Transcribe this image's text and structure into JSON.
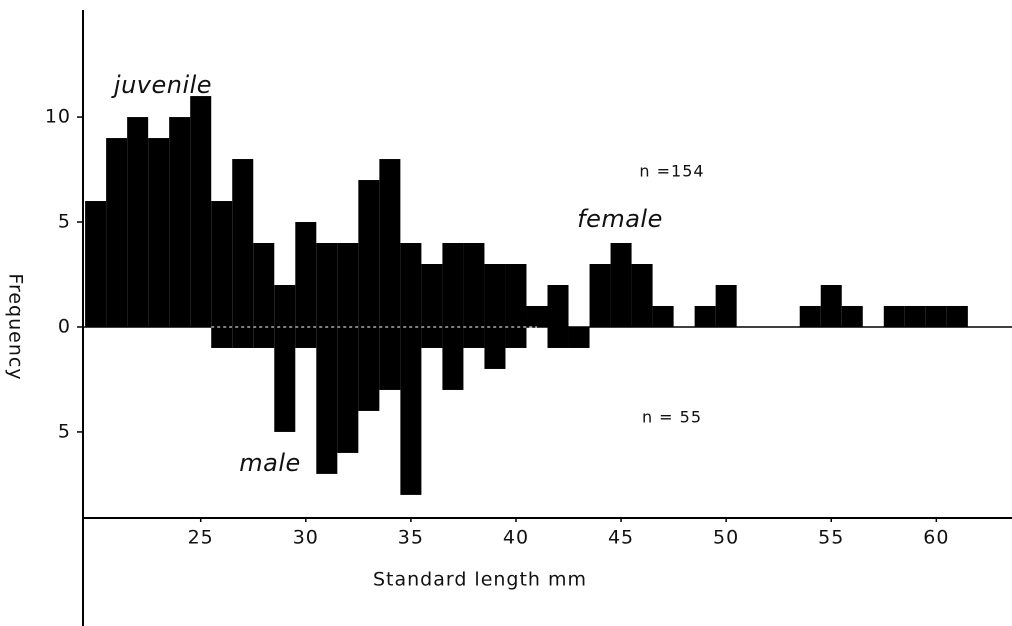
{
  "chart_data": {
    "type": "histogram",
    "xlabel": "Standard length  mm",
    "ylabel": "Frequency",
    "xlim": [
      19.4,
      63.6
    ],
    "ylim": [
      -9.1,
      15.1
    ],
    "xticks": [
      25,
      30,
      35,
      40,
      45,
      50,
      55,
      60
    ],
    "yticks": [
      10,
      5,
      0,
      {
        "value": -5,
        "label": "5"
      }
    ],
    "color": "#000000",
    "series": [
      {
        "bins": [
          19.5,
          20.5,
          21.5,
          22.5,
          23.5,
          24.5,
          25.5,
          26.5,
          27.5,
          28.5,
          29.5,
          30.5,
          31.5,
          32.5,
          33.5,
          34.5,
          35.5,
          36.5,
          37.5,
          38.5,
          39.5,
          40.5,
          41.5,
          42.5,
          43.5,
          44.5,
          45.5,
          46.5,
          47.5,
          48.5,
          49.5,
          50.5,
          51.5,
          52.5,
          53.5,
          54.5,
          55.5,
          56.5,
          57.5,
          58.5,
          59.5,
          60.5,
          61.5
        ],
        "values": [
          6,
          9,
          10,
          9,
          10,
          11,
          6,
          8,
          4,
          2,
          5,
          4,
          4,
          7,
          8,
          4,
          3,
          4,
          4,
          3,
          3,
          1,
          2,
          0,
          3,
          4,
          3,
          1,
          0,
          1,
          2,
          0,
          0,
          0,
          1,
          2,
          1,
          0,
          1,
          1,
          1,
          1
        ]
      },
      {
        "bins": [
          25.5,
          26.5,
          27.5,
          28.5,
          29.5,
          30.5,
          31.5,
          32.5,
          33.5,
          34.5,
          35.5,
          36.5,
          37.5,
          38.5,
          39.5,
          40.5,
          41.5,
          42.5,
          43.5
        ],
        "values": [
          -1,
          -1,
          -1,
          -5,
          -1,
          -7,
          -6,
          -4,
          -3,
          -8,
          -1,
          -3,
          -1,
          -2,
          -1,
          0,
          -1,
          -1
        ]
      }
    ],
    "annotations": [
      "juvenile",
      "female",
      "male",
      "n =154",
      "n = 55"
    ]
  }
}
